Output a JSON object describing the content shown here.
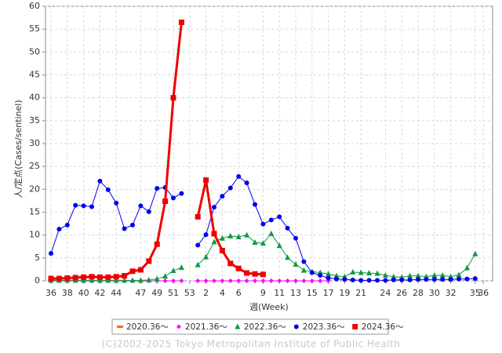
{
  "chart_data": {
    "type": "line",
    "x_label": "週(Week)",
    "y_label": "人/定点(Cases/sentinel)",
    "footer": "(C)2002-2025 Tokyo Metropolitan Institute of Public Health",
    "categories": [
      "36",
      null,
      "38",
      null,
      "40",
      null,
      "42",
      null,
      "44",
      null,
      null,
      "47",
      null,
      "49",
      null,
      "51",
      null,
      "53",
      null,
      "2",
      null,
      "4",
      null,
      "6",
      null,
      null,
      "9",
      null,
      "11",
      null,
      "13",
      null,
      "15",
      null,
      "17",
      null,
      "19",
      null,
      "21",
      null,
      null,
      "24",
      null,
      "26",
      null,
      "28",
      null,
      "30",
      null,
      "32",
      null,
      null,
      "35",
      "36"
    ],
    "ylim": [
      0,
      60
    ],
    "yticks": [
      0,
      5,
      10,
      15,
      20,
      25,
      30,
      35,
      40,
      45,
      50,
      55,
      60
    ],
    "grid": true,
    "series": [
      {
        "name": "2020.36～",
        "color": "#ff6a00",
        "marker": "line",
        "line_width": 1,
        "values": [
          null,
          null,
          null,
          null,
          null,
          null,
          null,
          null,
          null,
          null,
          null,
          null,
          null,
          null,
          null,
          null,
          null,
          null,
          null,
          null,
          null,
          null,
          null,
          null,
          null,
          null,
          null,
          null,
          null,
          null,
          null,
          null,
          null,
          null,
          null,
          null,
          null,
          null,
          null,
          null,
          null,
          null,
          null,
          null,
          null,
          null,
          null,
          null,
          null,
          null,
          null,
          null,
          null,
          null
        ]
      },
      {
        "name": "2021.36～",
        "color": "#ff00ff",
        "marker": "diamond",
        "line_width": 1,
        "values": [
          0,
          0,
          0,
          0,
          0,
          0,
          0,
          0,
          0,
          0,
          0,
          0,
          0,
          0,
          0,
          0,
          0,
          null,
          0,
          0,
          0,
          0,
          0,
          0,
          0,
          0,
          0,
          0,
          0,
          0,
          0,
          0,
          0,
          0,
          0,
          null,
          null,
          null,
          null,
          null,
          null,
          null,
          null,
          null,
          null,
          null,
          null,
          null,
          null,
          null,
          null,
          null,
          null,
          null
        ]
      },
      {
        "name": "2022.36～",
        "color": "#119944",
        "marker": "triangle",
        "line_width": 1,
        "values": [
          0.1,
          0.1,
          0.1,
          0.1,
          0.1,
          0.1,
          0.1,
          0.1,
          0.1,
          0.1,
          0.1,
          0.1,
          0.2,
          0.4,
          1.0,
          2.2,
          2.9,
          null,
          3.5,
          5.2,
          8.5,
          9.3,
          9.8,
          9.6,
          10,
          8.4,
          8.2,
          10.3,
          7.7,
          5.1,
          3.6,
          2.3,
          2.0,
          1.8,
          1.5,
          1.1,
          0.9,
          1.9,
          1.8,
          1.7,
          1.6,
          1.2,
          0.9,
          0.8,
          1.1,
          1.1,
          0.9,
          1.2,
          1.2,
          0.9,
          1.3,
          2.8,
          5.9,
          null
        ]
      },
      {
        "name": "2023.36～",
        "color": "#0000ee",
        "marker": "circle",
        "line_width": 1,
        "values": [
          6,
          11.3,
          12.2,
          16.5,
          16.4,
          16.2,
          21.8,
          19.9,
          17,
          11.4,
          12.2,
          16.4,
          15.1,
          20.2,
          20.4,
          18.1,
          19.1,
          null,
          7.8,
          10.1,
          16.1,
          18.5,
          20.3,
          22.8,
          21.4,
          16.7,
          12.4,
          13.3,
          14,
          11.5,
          9.3,
          4.2,
          1.8,
          1.2,
          0.6,
          0.4,
          0.3,
          0.2,
          0.1,
          0.1,
          0.1,
          0.1,
          0.2,
          0.2,
          0.2,
          0.3,
          0.3,
          0.3,
          0.3,
          0.3,
          0.4,
          0.4,
          0.5,
          null
        ]
      },
      {
        "name": "2024.36～",
        "color": "#ee0000",
        "marker": "square",
        "line_width": 3,
        "values": [
          0.5,
          0.5,
          0.6,
          0.7,
          0.8,
          0.9,
          0.8,
          0.8,
          0.9,
          1.1,
          2.1,
          2.4,
          4.3,
          8.0,
          17.4,
          40,
          56.5,
          null,
          14,
          22,
          10.3,
          6.6,
          3.8,
          2.7,
          1.7,
          1.5,
          1.4,
          null,
          null,
          null,
          null,
          null,
          null,
          null,
          null,
          null,
          null,
          null,
          null,
          null,
          null,
          null,
          null,
          null,
          null,
          null,
          null,
          null,
          null,
          null,
          null,
          null,
          null,
          null
        ]
      }
    ]
  }
}
